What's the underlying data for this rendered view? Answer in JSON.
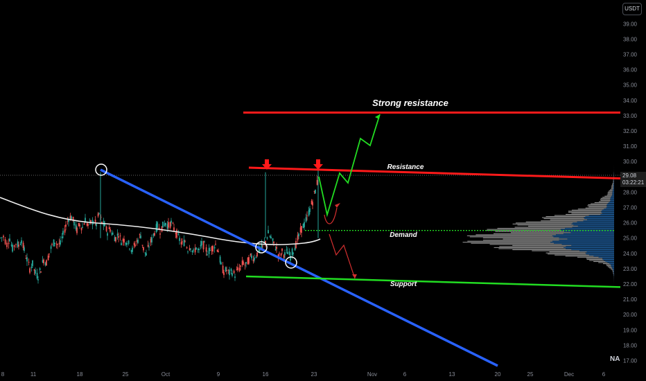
{
  "header": {
    "currency_badge": "USDT"
  },
  "price_tag": {
    "price": "29.08",
    "countdown": "03:22:21"
  },
  "symbol_tag": "NA",
  "colors": {
    "bull": "#26a69a",
    "bear": "#ef5350",
    "resistance": "#ff1a1a",
    "support": "#22dd22",
    "trendline": "#2962ff",
    "ma": "#f0f0f0",
    "profile_blue": "#1e5a96",
    "profile_gray": "#8d8d8d",
    "projection_up": "#22dd22",
    "projection_alt": "#d32f2f"
  },
  "chart_data": {
    "type": "candlestick",
    "y_axis": {
      "min": 17,
      "max": 39.5,
      "ticks": [
        "17.00",
        "18.00",
        "19.00",
        "20.00",
        "21.00",
        "22.00",
        "23.00",
        "24.00",
        "25.00",
        "26.00",
        "27.00",
        "28.00",
        "29.00",
        "30.00",
        "31.00",
        "32.00",
        "33.00",
        "34.00",
        "35.00",
        "36.00",
        "37.00",
        "38.00",
        "39.00"
      ]
    },
    "x_axis": {
      "ticks": [
        "8",
        "11",
        "18",
        "25",
        "Oct",
        "9",
        "16",
        "23",
        "Nov",
        "6",
        "13",
        "20",
        "25",
        "Dec",
        "6"
      ]
    },
    "annotations": {
      "strong_resistance": {
        "label": "Strong resistance",
        "price": 33.2
      },
      "resistance": {
        "label": "Resistance",
        "price_start": 29.6,
        "price_end": 28.9
      },
      "demand": {
        "label": "Demand",
        "price": 25.5
      },
      "support": {
        "label": "Support",
        "price_start": 22.5,
        "price_end": 21.8
      }
    },
    "candles_path": [
      [
        0,
        25
      ],
      [
        5,
        25.1
      ],
      [
        10,
        24.6
      ],
      [
        14,
        25.0
      ],
      [
        18,
        24.3
      ],
      [
        23,
        24.7
      ],
      [
        27,
        24.5
      ],
      [
        31,
        24.9
      ],
      [
        35,
        24.2
      ],
      [
        39,
        23.6
      ],
      [
        43,
        23.0
      ],
      [
        47,
        23.3
      ],
      [
        51,
        22.7
      ],
      [
        55,
        22.5
      ],
      [
        59,
        23.0
      ],
      [
        63,
        23.6
      ],
      [
        67,
        23.4
      ],
      [
        71,
        24.0
      ],
      [
        75,
        24.5
      ],
      [
        79,
        24.8
      ],
      [
        83,
        24.6
      ],
      [
        87,
        24.6
      ],
      [
        91,
        25.2
      ],
      [
        95,
        25.8
      ],
      [
        99,
        26.3
      ],
      [
        103,
        26.4
      ],
      [
        107,
        26.0
      ],
      [
        111,
        25.5
      ],
      [
        115,
        25.9
      ],
      [
        119,
        25.7
      ],
      [
        123,
        26.2
      ],
      [
        127,
        25.8
      ],
      [
        131,
        26.0
      ],
      [
        135,
        26.1
      ],
      [
        139,
        25.9
      ],
      [
        143,
        26.6
      ],
      [
        147,
        26.0
      ],
      [
        151,
        25.8
      ],
      [
        155,
        25.4
      ],
      [
        159,
        25.6
      ],
      [
        163,
        25.2
      ],
      [
        167,
        25.0
      ],
      [
        171,
        25.3
      ],
      [
        175,
        24.8
      ],
      [
        179,
        24.9
      ],
      [
        183,
        24.8
      ],
      [
        187,
        24.5
      ],
      [
        191,
        24.2
      ],
      [
        195,
        24.6
      ],
      [
        199,
        24.9
      ],
      [
        203,
        25.2
      ],
      [
        207,
        24.3
      ],
      [
        211,
        23.9
      ],
      [
        215,
        24.5
      ],
      [
        219,
        24.9
      ],
      [
        223,
        25.4
      ],
      [
        227,
        25.8
      ],
      [
        231,
        25.5
      ],
      [
        235,
        25.8
      ],
      [
        239,
        26.0
      ],
      [
        243,
        25.8
      ],
      [
        247,
        26.0
      ],
      [
        251,
        25.6
      ],
      [
        255,
        25.3
      ],
      [
        259,
        24.9
      ],
      [
        263,
        24.6
      ],
      [
        267,
        24.8
      ],
      [
        271,
        24.3
      ],
      [
        275,
        24.5
      ],
      [
        279,
        24.0
      ],
      [
        283,
        24.4
      ],
      [
        287,
        24.1
      ],
      [
        291,
        24.6
      ],
      [
        295,
        24.5
      ],
      [
        299,
        24.1
      ],
      [
        303,
        24.2
      ],
      [
        307,
        24.4
      ],
      [
        311,
        24.6
      ],
      [
        315,
        24.2
      ],
      [
        319,
        23.2
      ],
      [
        323,
        22.8
      ],
      [
        327,
        22.9
      ],
      [
        331,
        22.7
      ],
      [
        335,
        22.8
      ],
      [
        339,
        22.6
      ],
      [
        343,
        22.9
      ],
      [
        347,
        23.1
      ],
      [
        351,
        23.4
      ],
      [
        355,
        23.2
      ],
      [
        359,
        23.6
      ],
      [
        363,
        23.8
      ],
      [
        367,
        23.7
      ],
      [
        371,
        24.0
      ],
      [
        375,
        24.3
      ],
      [
        379,
        24.4
      ],
      [
        383,
        24.8
      ],
      [
        387,
        25.3
      ],
      [
        391,
        25.0
      ],
      [
        395,
        24.6
      ],
      [
        399,
        24.3
      ],
      [
        403,
        23.8
      ],
      [
        407,
        24.1
      ],
      [
        411,
        23.9
      ],
      [
        415,
        24.1
      ],
      [
        419,
        23.8
      ],
      [
        423,
        24.2
      ],
      [
        427,
        24.6
      ],
      [
        431,
        25.1
      ],
      [
        435,
        25.6
      ],
      [
        439,
        25.9
      ],
      [
        443,
        26.3
      ],
      [
        447,
        26.9
      ],
      [
        451,
        27.4
      ],
      [
        455,
        28.1
      ],
      [
        459,
        28.9
      ]
    ],
    "spikes": [
      {
        "x": 145,
        "high": 29.3
      },
      {
        "x": 383,
        "high": 29.3
      },
      {
        "x": 459,
        "high": 29.5
      }
    ]
  }
}
